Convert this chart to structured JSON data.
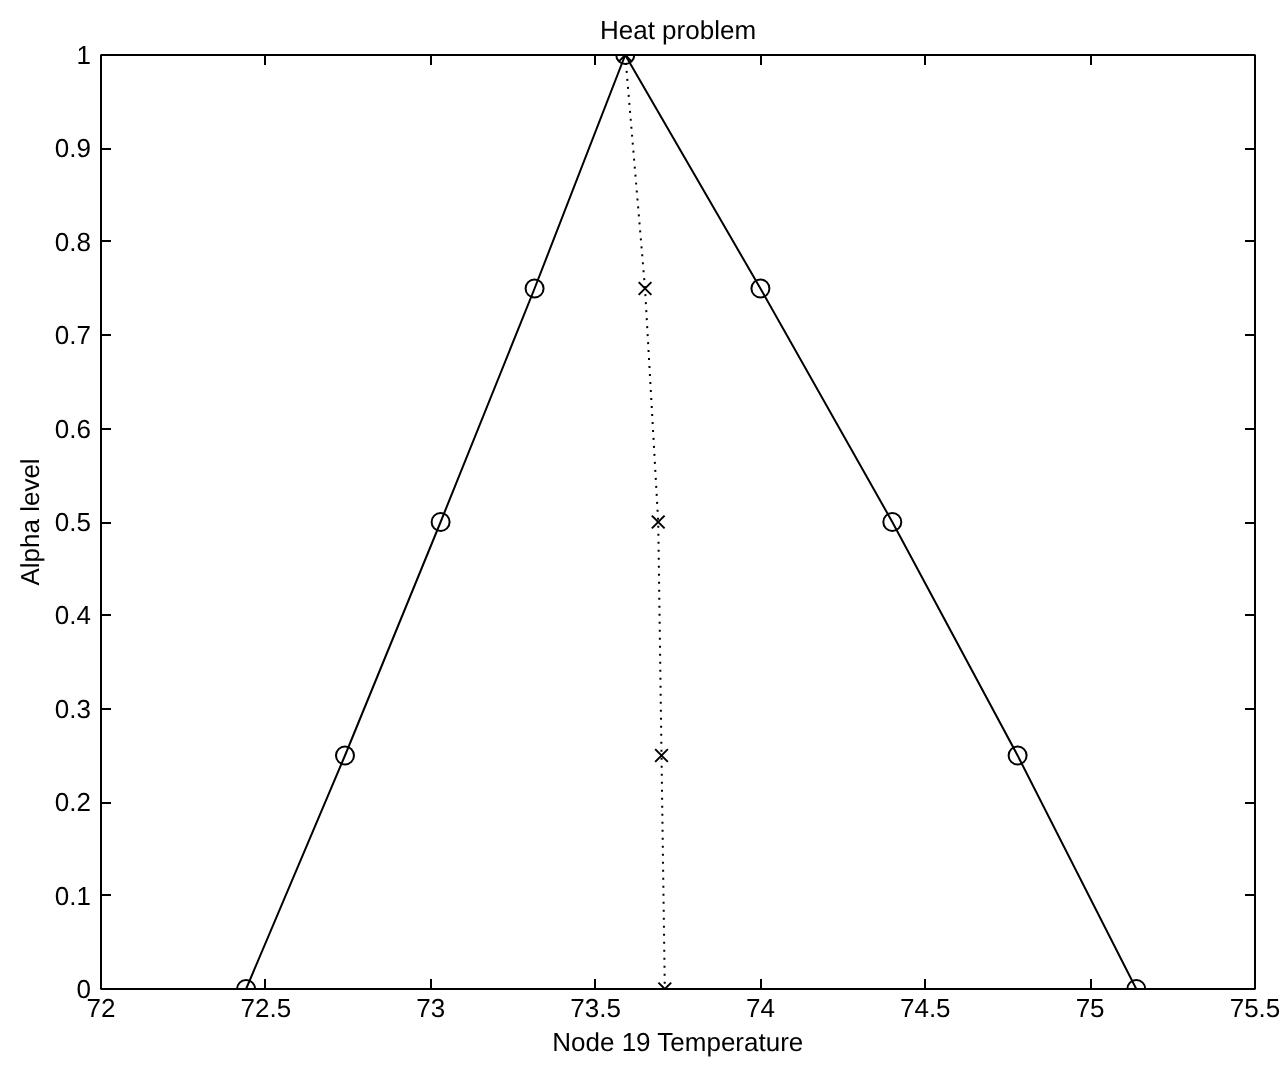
{
  "chart_data": {
    "type": "line",
    "title": "Heat problem",
    "xlabel": "Node 19 Temperature",
    "ylabel": "Alpha level",
    "xlim": [
      72,
      75.5
    ],
    "ylim": [
      0,
      1
    ],
    "xticks": [
      72,
      72.5,
      73,
      73.5,
      74,
      74.5,
      75,
      75.5
    ],
    "yticks": [
      0,
      0.1,
      0.2,
      0.3,
      0.4,
      0.5,
      0.6,
      0.7,
      0.8,
      0.9,
      1
    ],
    "series": [
      {
        "color": "#000000",
        "marker": "circle",
        "line_style": "solid",
        "x": [
          72.44,
          72.74,
          73.03,
          73.315,
          73.59,
          74.0,
          74.4,
          74.78,
          75.14
        ],
        "values": [
          0,
          0.25,
          0.5,
          0.75,
          1,
          0.75,
          0.5,
          0.25,
          0
        ]
      },
      {
        "color": "#000000",
        "marker": "cross",
        "line_style": "dotted",
        "x": [
          73.59,
          73.65,
          73.69,
          73.7,
          73.71
        ],
        "values": [
          1,
          0.75,
          0.5,
          0.25,
          0
        ]
      }
    ]
  }
}
